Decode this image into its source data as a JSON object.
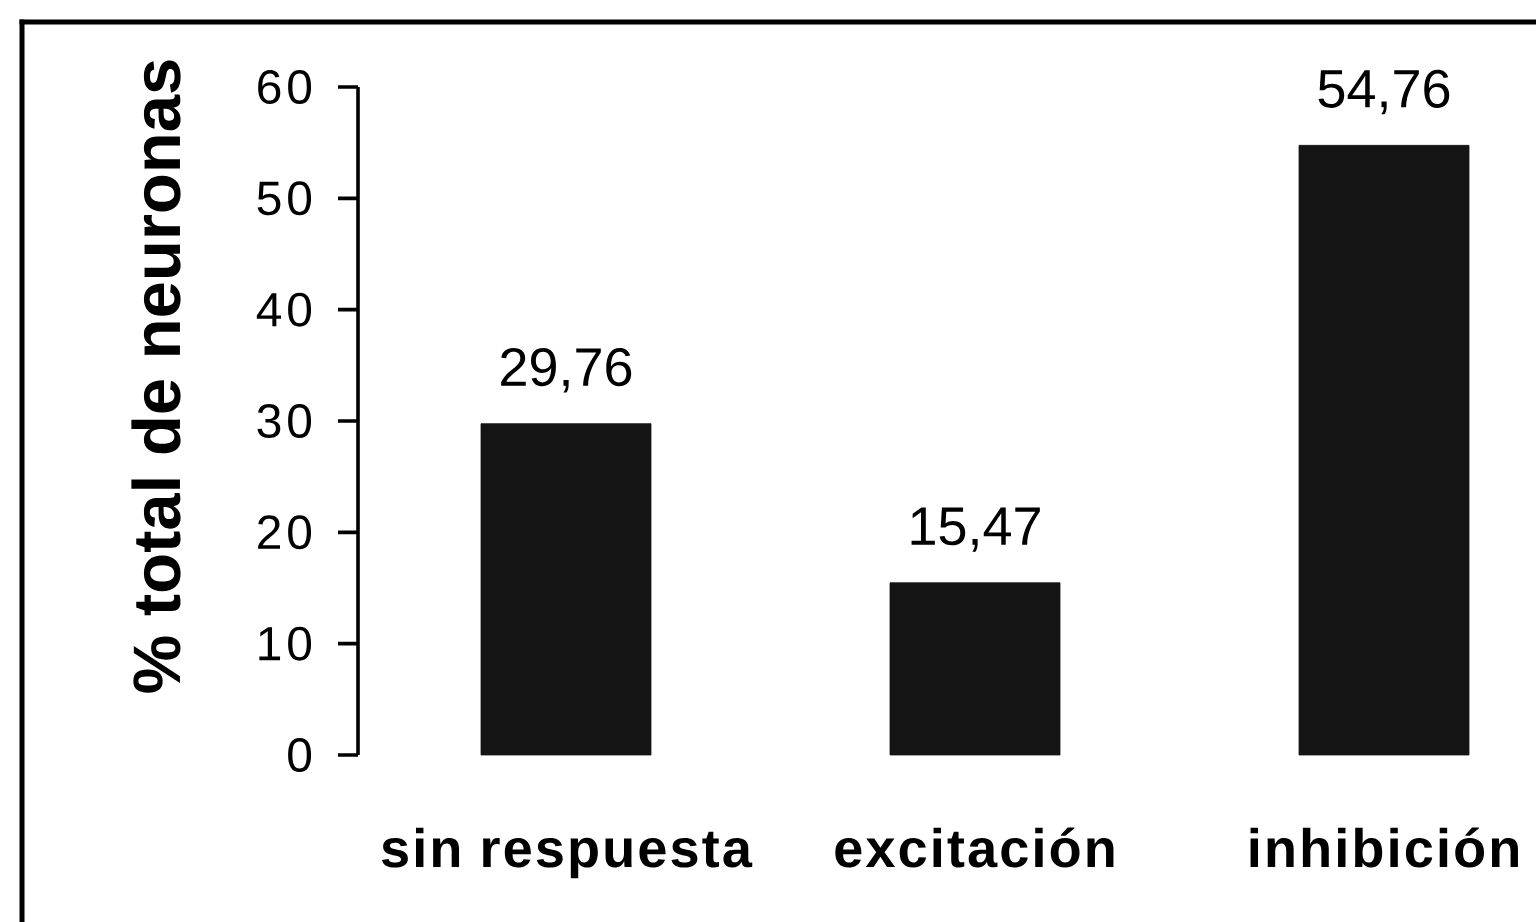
{
  "chart_data": {
    "type": "bar",
    "ylabel": "% total de neuronas",
    "categories": [
      "sin respuesta",
      "excitación",
      "inhibición"
    ],
    "values": [
      29.76,
      15.47,
      54.76
    ],
    "value_labels": [
      "29,76",
      "15,47",
      "54,76"
    ],
    "color": "#141414",
    "ylim": [
      0,
      60
    ],
    "yticks": [
      0,
      10,
      20,
      30,
      40,
      50,
      60
    ]
  }
}
